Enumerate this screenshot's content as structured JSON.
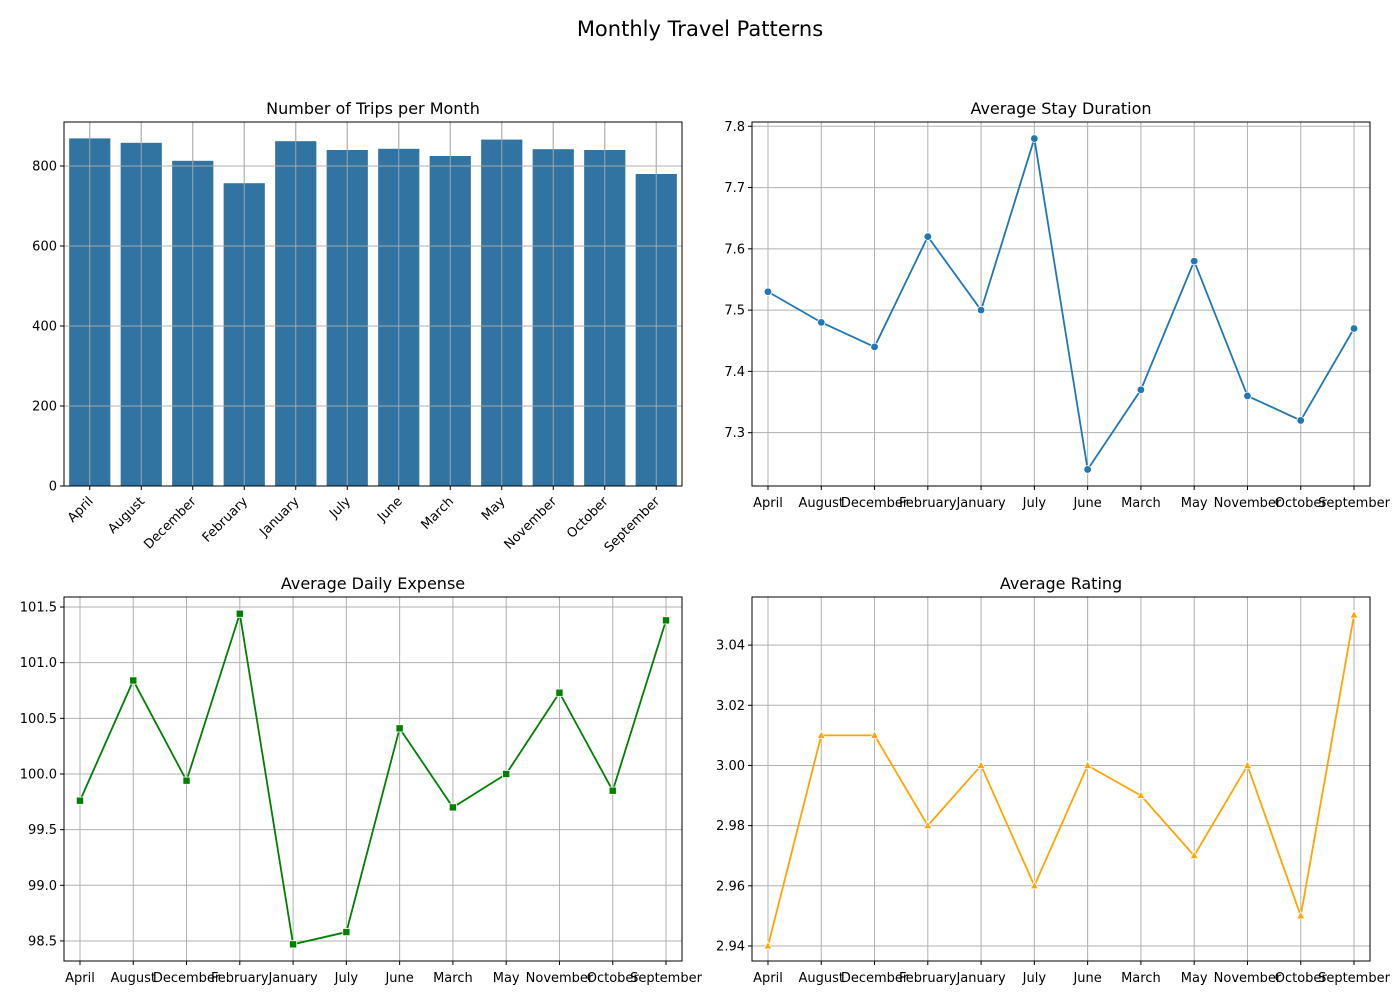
{
  "suptitle": "Monthly Travel Patterns",
  "chart_data": [
    {
      "type": "bar",
      "title": "Number of Trips per Month",
      "xlabel": "",
      "ylabel": "",
      "categories": [
        "April",
        "August",
        "December",
        "February",
        "January",
        "July",
        "June",
        "March",
        "May",
        "November",
        "October",
        "September"
      ],
      "values": [
        869,
        858,
        813,
        757,
        862,
        840,
        843,
        825,
        866,
        842,
        840,
        780
      ],
      "ylim": [
        0,
        910
      ],
      "yticks": [
        0,
        200,
        400,
        600,
        800
      ],
      "ytick_labels": [
        "0",
        "200",
        "400",
        "600",
        "800"
      ],
      "rotate_xticks": true,
      "grid": true,
      "color": "#3274a1"
    },
    {
      "type": "line",
      "title": "Average Stay Duration",
      "xlabel": "",
      "ylabel": "",
      "categories": [
        "April",
        "August",
        "December",
        "February",
        "January",
        "July",
        "June",
        "March",
        "May",
        "November",
        "October",
        "September"
      ],
      "values": [
        7.53,
        7.48,
        7.44,
        7.62,
        7.5,
        7.78,
        7.24,
        7.37,
        7.58,
        7.36,
        7.32,
        7.47
      ],
      "ylim": [
        7.213,
        7.807
      ],
      "yticks": [
        7.3,
        7.4,
        7.5,
        7.6,
        7.7,
        7.8
      ],
      "ytick_labels": [
        "7.3",
        "7.4",
        "7.5",
        "7.6",
        "7.7",
        "7.8"
      ],
      "rotate_xticks": false,
      "grid": true,
      "color": "#1f77b4",
      "marker": "circle"
    },
    {
      "type": "line",
      "title": "Average Daily Expense",
      "xlabel": "",
      "ylabel": "",
      "categories": [
        "April",
        "August",
        "December",
        "February",
        "January",
        "July",
        "June",
        "March",
        "May",
        "November",
        "October",
        "September"
      ],
      "values": [
        99.76,
        100.84,
        99.94,
        101.44,
        98.47,
        98.58,
        100.41,
        99.7,
        100.0,
        100.73,
        99.85,
        101.38
      ],
      "ylim": [
        98.32,
        101.59
      ],
      "yticks": [
        98.5,
        99.0,
        99.5,
        100.0,
        100.5,
        101.0,
        101.5
      ],
      "ytick_labels": [
        "98.5",
        "99.0",
        "99.5",
        "100.0",
        "100.5",
        "101.0",
        "101.5"
      ],
      "rotate_xticks": false,
      "grid": true,
      "color": "#008000",
      "marker": "square"
    },
    {
      "type": "line",
      "title": "Average Rating",
      "xlabel": "",
      "ylabel": "",
      "categories": [
        "April",
        "August",
        "December",
        "February",
        "January",
        "July",
        "June",
        "March",
        "May",
        "November",
        "October",
        "September"
      ],
      "values": [
        2.94,
        3.01,
        3.01,
        2.98,
        3.0,
        2.96,
        3.0,
        2.99,
        2.97,
        3.0,
        2.95,
        3.05
      ],
      "ylim": [
        2.935,
        3.056
      ],
      "yticks": [
        2.94,
        2.96,
        2.98,
        3.0,
        3.02,
        3.04
      ],
      "ytick_labels": [
        "2.94",
        "2.96",
        "2.98",
        "3.00",
        "3.02",
        "3.04"
      ],
      "rotate_xticks": false,
      "grid": true,
      "color": "#ffa500",
      "marker": "triangle"
    }
  ]
}
